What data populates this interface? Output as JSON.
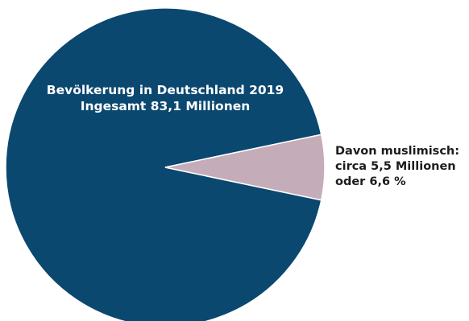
{
  "chart_data": {
    "type": "pie",
    "title": "",
    "slices": [
      {
        "label_lines": [
          "Bevölkerung in Deutschland 2019",
          "Ingesamt 83,1 Millionen"
        ],
        "value": 93.4,
        "color": "#0b4870"
      },
      {
        "label_lines": [
          "Davon muslimisch:",
          "circa 5,5 Millionen",
          "oder 6,6 %"
        ],
        "value": 6.6,
        "color": "#c4acb8"
      }
    ],
    "total_millions": 83.1,
    "muslim_millions": 5.5,
    "muslim_percent": 6.6
  }
}
